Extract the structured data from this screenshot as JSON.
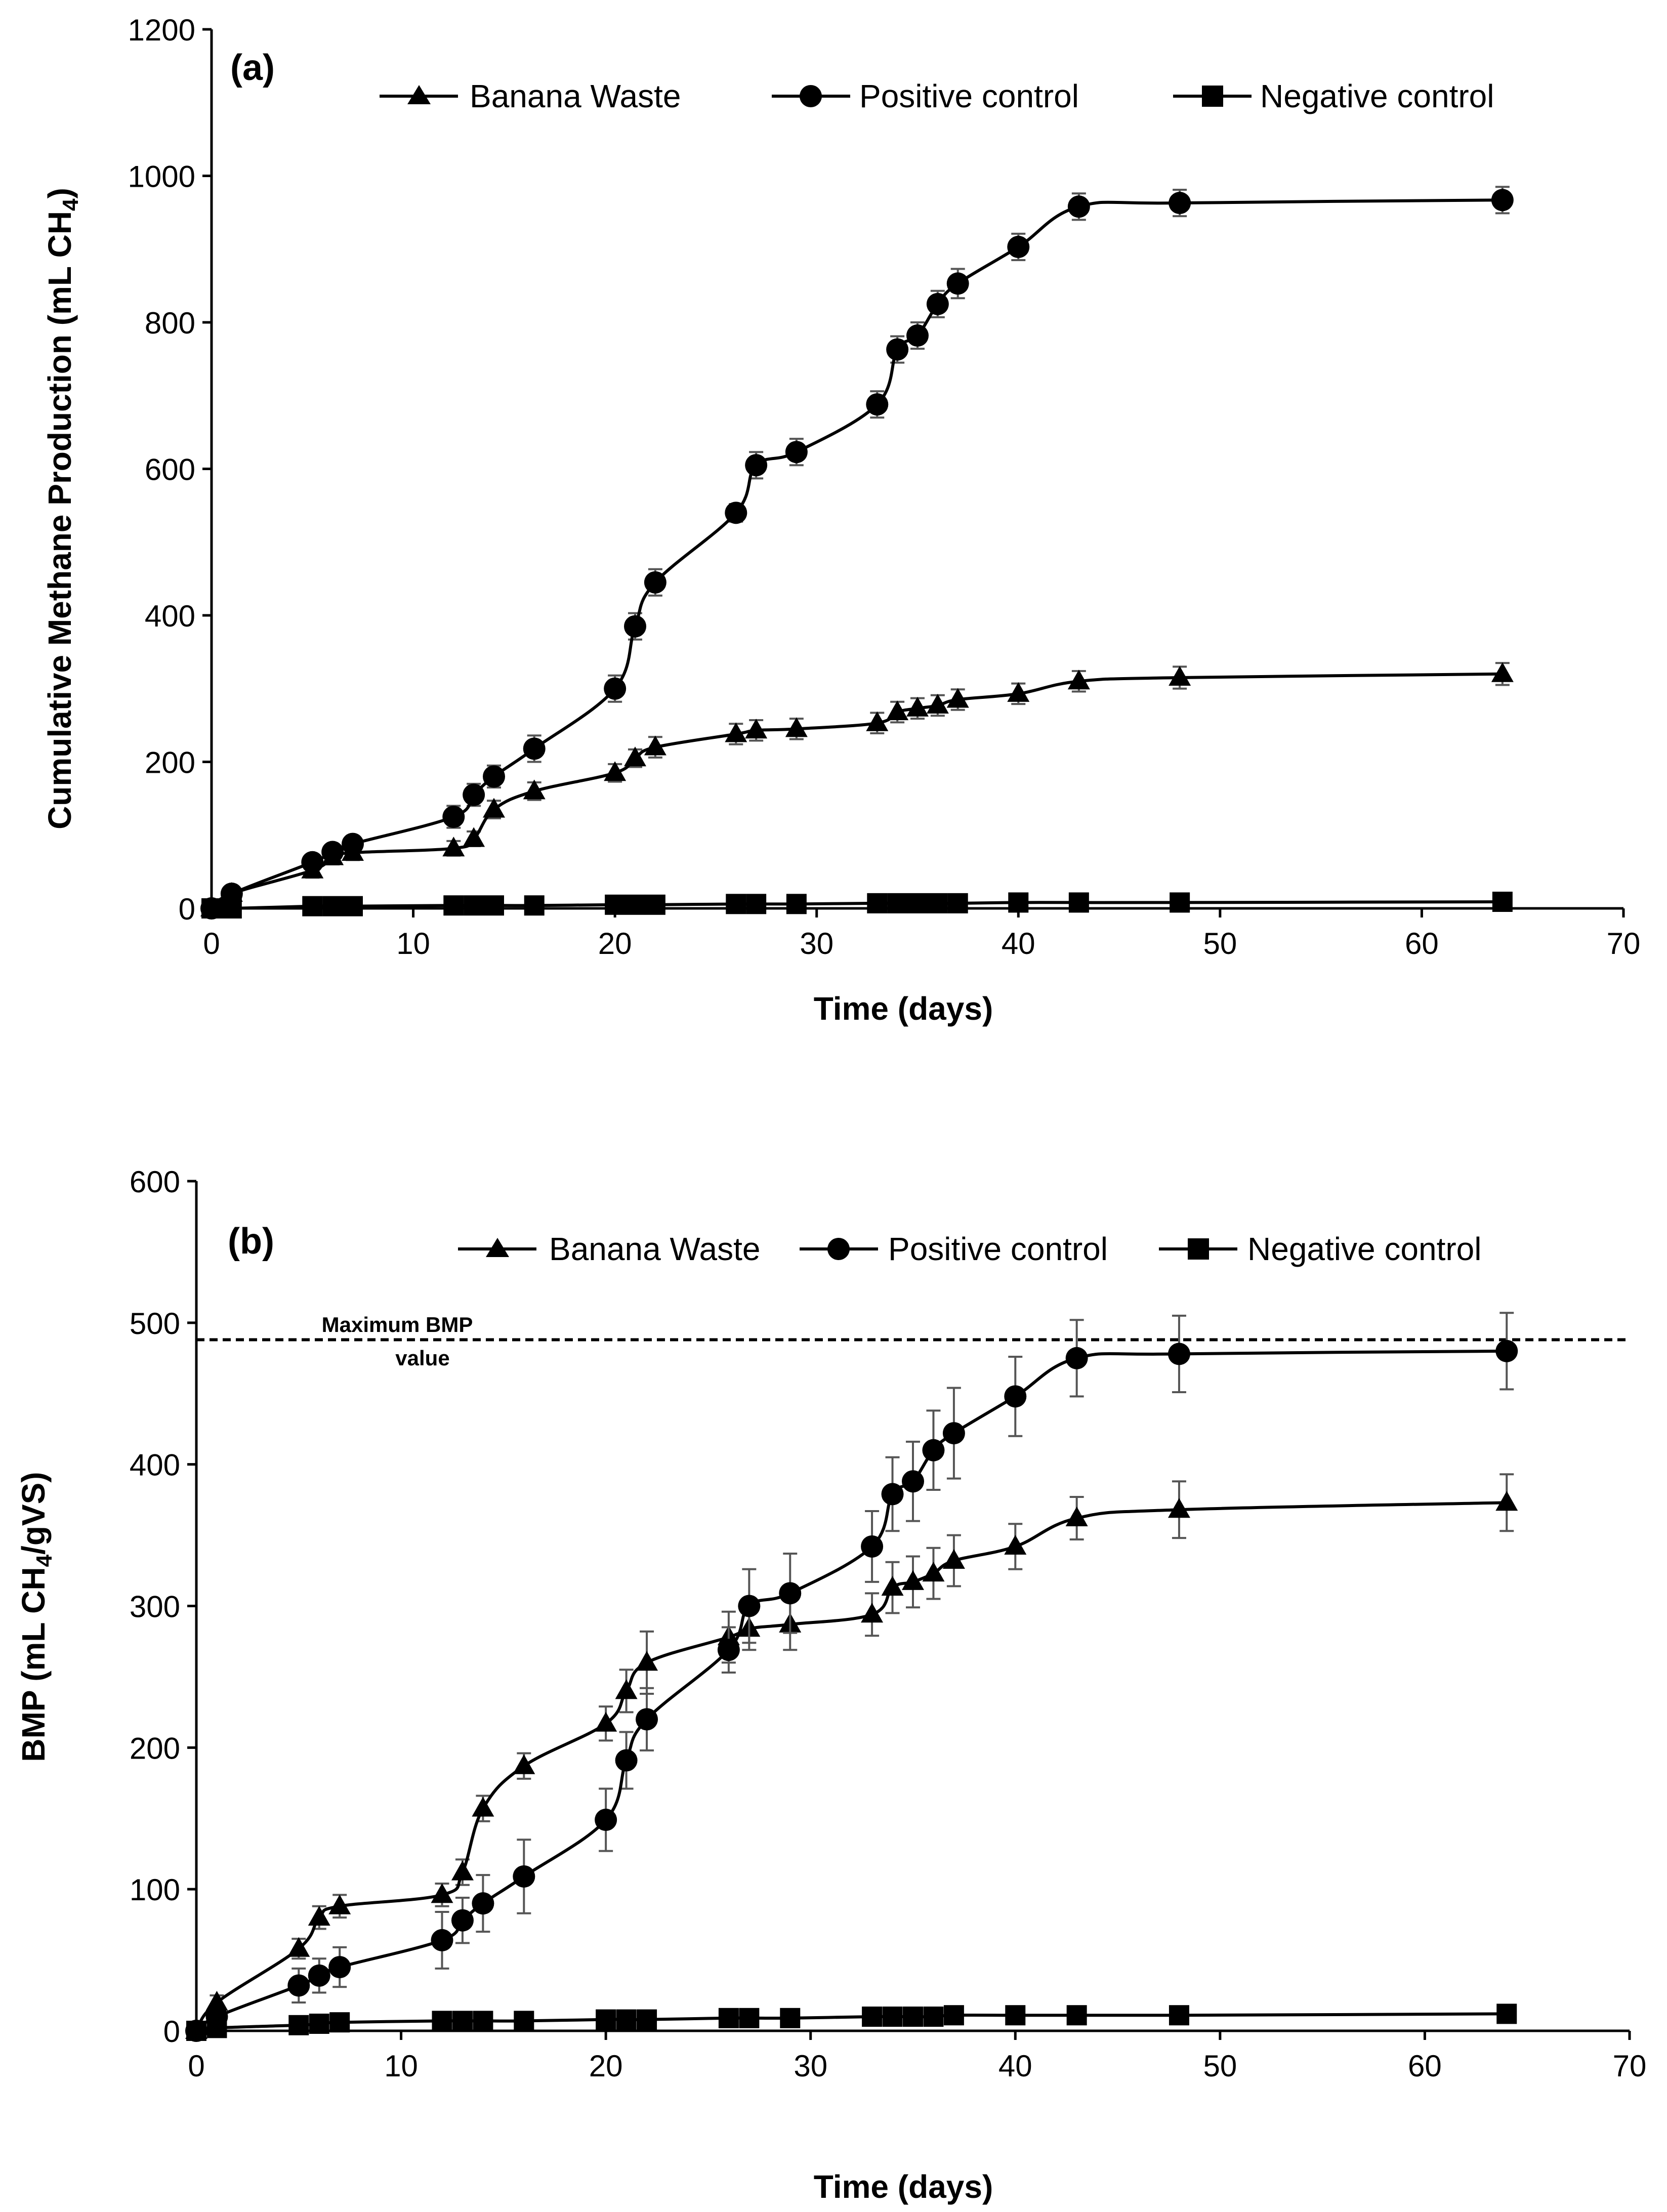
{
  "figure": "Cumulative methane production and BMP of banana waste",
  "chart_data": [
    {
      "type": "line",
      "panel_label": "(a)",
      "title": "",
      "xlabel": "Time (days)",
      "ylabel_main": "Cumulative Methane Production (mL CH",
      "ylabel_sub": "4",
      "ylabel_end": ")",
      "xlim": [
        0,
        70
      ],
      "ylim": [
        0,
        1200
      ],
      "xticks": [
        0,
        10,
        20,
        30,
        40,
        50,
        60,
        70
      ],
      "yticks": [
        0,
        200,
        400,
        600,
        800,
        1000,
        1200
      ],
      "xtick_labels": [
        "0",
        "10",
        "20",
        "30",
        "40",
        "50",
        "60",
        "70"
      ],
      "ytick_labels": [
        "0",
        "200",
        "400",
        "600",
        "800",
        "1000",
        "1200"
      ],
      "legend_position": "top",
      "series": [
        {
          "name": "Banana Waste",
          "marker": "triangle",
          "x": [
            0,
            1,
            5,
            6,
            7,
            12,
            13,
            14,
            16,
            20,
            21,
            22,
            26,
            27,
            29,
            33,
            34,
            35,
            36,
            37,
            40,
            43,
            48,
            64
          ],
          "y": [
            0,
            20,
            52,
            70,
            76,
            82,
            95,
            135,
            160,
            185,
            205,
            220,
            238,
            243,
            245,
            253,
            268,
            273,
            277,
            285,
            293,
            310,
            315,
            320
          ],
          "err": [
            3,
            5,
            10,
            10,
            10,
            10,
            10,
            12,
            12,
            12,
            12,
            14,
            14,
            14,
            14,
            14,
            14,
            14,
            14,
            14,
            14,
            14,
            15,
            15
          ]
        },
        {
          "name": "Positive control",
          "marker": "circle",
          "x": [
            0,
            1,
            5,
            6,
            7,
            12,
            13,
            14,
            16,
            20,
            21,
            22,
            26,
            27,
            29,
            33,
            34,
            35,
            36,
            37,
            40,
            43,
            48,
            64
          ],
          "y": [
            0,
            20,
            63,
            77,
            88,
            125,
            155,
            180,
            218,
            300,
            385,
            445,
            540,
            605,
            623,
            688,
            763,
            782,
            825,
            853,
            903,
            958,
            963,
            967
          ],
          "err": [
            3,
            5,
            8,
            10,
            10,
            15,
            15,
            15,
            18,
            18,
            18,
            18,
            12,
            18,
            18,
            18,
            18,
            18,
            18,
            20,
            18,
            18,
            18,
            18
          ]
        },
        {
          "name": "Negative control",
          "marker": "square",
          "x": [
            0,
            1,
            5,
            6,
            7,
            12,
            13,
            14,
            16,
            20,
            21,
            22,
            26,
            27,
            29,
            33,
            34,
            35,
            36,
            37,
            40,
            43,
            48,
            64
          ],
          "y": [
            0,
            0,
            3,
            3,
            3,
            4,
            4,
            4,
            4,
            5,
            5,
            5,
            6,
            6,
            6,
            7,
            7,
            7,
            7,
            7,
            8,
            8,
            8,
            9
          ],
          "err": [
            0,
            0,
            1,
            1,
            1,
            1,
            1,
            1,
            1,
            1,
            1,
            1,
            1,
            1,
            1,
            1,
            1,
            1,
            1,
            1,
            1,
            1,
            1,
            1
          ]
        }
      ]
    },
    {
      "type": "line",
      "panel_label": "(b)",
      "title": "",
      "xlabel": "Time (days)",
      "ylabel_main": "BMP (mL CH",
      "ylabel_sub": "4",
      "ylabel_end": "/gVS)",
      "xlim": [
        0,
        70
      ],
      "ylim": [
        0,
        600
      ],
      "xticks": [
        0,
        10,
        20,
        30,
        40,
        50,
        60,
        70
      ],
      "yticks": [
        0,
        100,
        200,
        300,
        400,
        500,
        600
      ],
      "xtick_labels": [
        "0",
        "10",
        "20",
        "30",
        "40",
        "50",
        "60",
        "70"
      ],
      "ytick_labels": [
        "0",
        "100",
        "200",
        "300",
        "400",
        "500",
        "600"
      ],
      "legend_position": "top",
      "reference_line": {
        "y": 488,
        "label_line1": "Maximum BMP",
        "label_line2": "value",
        "style": "dashed"
      },
      "series": [
        {
          "name": "Banana Waste",
          "marker": "triangle",
          "x": [
            0,
            1,
            5,
            6,
            7,
            12,
            13,
            14,
            16,
            20,
            21,
            22,
            26,
            27,
            29,
            33,
            34,
            35,
            36,
            37,
            40,
            43,
            48,
            64
          ],
          "y": [
            0,
            20,
            58,
            80,
            88,
            96,
            112,
            157,
            187,
            217,
            240,
            260,
            278,
            284,
            287,
            294,
            313,
            317,
            323,
            332,
            342,
            362,
            368,
            373
          ],
          "err": [
            3,
            5,
            7,
            8,
            8,
            8,
            9,
            9,
            9,
            12,
            15,
            22,
            18,
            15,
            18,
            15,
            18,
            18,
            18,
            18,
            16,
            15,
            20,
            20
          ]
        },
        {
          "name": "Positive control",
          "marker": "circle",
          "x": [
            0,
            1,
            5,
            6,
            7,
            12,
            13,
            14,
            16,
            20,
            21,
            22,
            26,
            27,
            29,
            33,
            34,
            35,
            36,
            37,
            40,
            43,
            48,
            64
          ],
          "y": [
            0,
            10,
            32,
            39,
            45,
            64,
            78,
            90,
            109,
            149,
            191,
            220,
            269,
            300,
            309,
            342,
            379,
            388,
            410,
            422,
            448,
            475,
            478,
            480
          ],
          "err": [
            2,
            5,
            12,
            12,
            14,
            20,
            16,
            20,
            26,
            22,
            20,
            22,
            16,
            26,
            28,
            25,
            26,
            28,
            28,
            32,
            28,
            27,
            27,
            27
          ]
        },
        {
          "name": "Negative control",
          "marker": "square",
          "x": [
            0,
            1,
            5,
            6,
            7,
            12,
            13,
            14,
            16,
            20,
            21,
            22,
            26,
            27,
            29,
            33,
            34,
            35,
            36,
            37,
            40,
            43,
            48,
            64
          ],
          "y": [
            0,
            2,
            4,
            5,
            6,
            7,
            7,
            7,
            7,
            8,
            8,
            8,
            9,
            9,
            9,
            10,
            10,
            10,
            10,
            11,
            11,
            11,
            11,
            12
          ],
          "err": [
            0,
            0,
            1,
            1,
            1,
            1,
            1,
            1,
            1,
            1,
            1,
            1,
            1,
            1,
            1,
            1,
            1,
            1,
            1,
            1,
            1,
            1,
            1,
            1
          ]
        }
      ]
    }
  ]
}
